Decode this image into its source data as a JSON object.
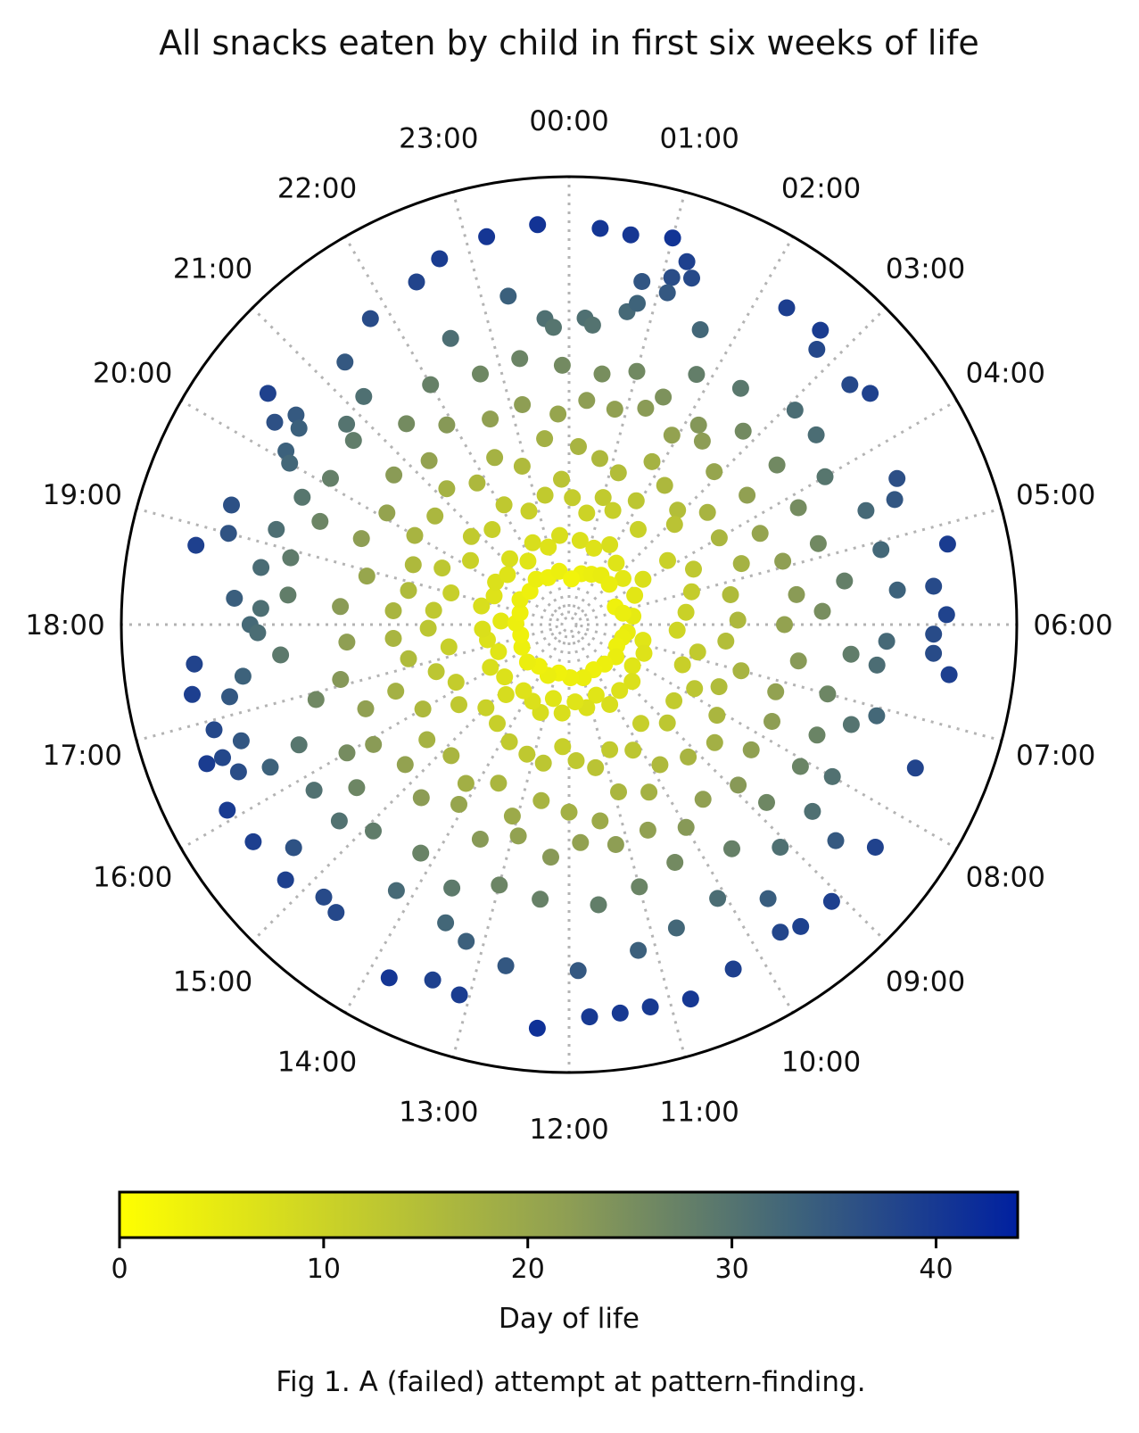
{
  "figure": {
    "caption": "Fig 1. A (failed) attempt at pattern-finding."
  },
  "chart_data": {
    "type": "scatter",
    "projection": "polar",
    "title": "All snacks eaten by child in first six weeks of life",
    "angular_axis": {
      "direction": "clockwise",
      "zero_at": "top",
      "tick_labels": [
        "00:00",
        "01:00",
        "02:00",
        "03:00",
        "04:00",
        "05:00",
        "06:00",
        "07:00",
        "08:00",
        "09:00",
        "10:00",
        "11:00",
        "12:00",
        "13:00",
        "14:00",
        "15:00",
        "16:00",
        "17:00",
        "18:00",
        "19:00",
        "20:00",
        "21:00",
        "22:00",
        "23:00"
      ]
    },
    "radial_axis": {
      "quantity": "day of life",
      "range": [
        0,
        44
      ],
      "tick_labels_shown": false
    },
    "grid": true,
    "colorbar": {
      "label": "Day of life",
      "range": [
        0,
        44
      ],
      "ticks": [
        0,
        10,
        20,
        30,
        40
      ],
      "tick_labels": [
        "0",
        "10",
        "20",
        "30",
        "40"
      ],
      "colormap_stops": [
        "#ffff00",
        "#8e9e54",
        "#3f647a",
        "#0020a0"
      ],
      "placement": "bottom"
    },
    "points_note": "each point: [hour of day (0-24), day of life]; also color-coded by day",
    "points": [
      [
        0.3,
        40.5
      ],
      [
        0.6,
        40.2
      ],
      [
        1.0,
        40.8
      ],
      [
        1.2,
        38.8
      ],
      [
        1.3,
        37.3
      ],
      [
        1.1,
        36.7
      ],
      [
        0.8,
        35.5
      ],
      [
        1.1,
        35.0
      ],
      [
        23.7,
        40.9
      ],
      [
        23.2,
        40.4
      ],
      [
        22.7,
        39.5
      ],
      [
        22.4,
        38.1
      ],
      [
        21.8,
        37.0
      ],
      [
        21.3,
        34.9
      ],
      [
        20.5,
        38.6
      ],
      [
        20.3,
        36.2
      ],
      [
        20.5,
        34.8
      ],
      [
        20.4,
        33.7
      ],
      [
        20.1,
        33.5
      ],
      [
        19.3,
        36.3
      ],
      [
        19.0,
        35.7
      ],
      [
        18.8,
        38.8
      ],
      [
        18.3,
        33.9
      ],
      [
        18.0,
        32.1
      ],
      [
        17.9,
        31.3
      ],
      [
        17.6,
        38.3
      ],
      [
        17.3,
        39.0
      ],
      [
        17.2,
        35.1
      ],
      [
        16.6,
        39.5
      ],
      [
        16.6,
        37.7
      ],
      [
        16.9,
        37.6
      ],
      [
        16.7,
        35.2
      ],
      [
        16.4,
        36.7
      ],
      [
        16.1,
        39.6
      ],
      [
        16.3,
        33.4
      ],
      [
        15.7,
        39.0
      ],
      [
        15.4,
        35.9
      ],
      [
        15.2,
        38.8
      ],
      [
        14.8,
        37.2
      ],
      [
        14.6,
        37.6
      ],
      [
        13.8,
        40.4
      ],
      [
        13.4,
        38.7
      ],
      [
        13.1,
        39.3
      ],
      [
        12.3,
        41.3
      ],
      [
        11.8,
        40.0
      ],
      [
        11.5,
        39.9
      ],
      [
        11.2,
        39.8
      ],
      [
        10.8,
        40.1
      ],
      [
        10.3,
        38.8
      ],
      [
        9.7,
        37.9
      ],
      [
        9.5,
        38.7
      ],
      [
        9.1,
        38.8
      ],
      [
        8.4,
        38.5
      ],
      [
        8.6,
        34.7
      ],
      [
        7.5,
        38.1
      ],
      [
        7.1,
        32.3
      ],
      [
        6.5,
        39.0
      ],
      [
        6.3,
        37.1
      ],
      [
        6.1,
        37.0
      ],
      [
        5.9,
        38.4
      ],
      [
        5.6,
        37.2
      ],
      [
        5.2,
        39.4
      ],
      [
        4.6,
        35.3
      ],
      [
        4.4,
        36.4
      ],
      [
        3.5,
        38.6
      ],
      [
        3.3,
        37.5
      ],
      [
        2.7,
        39.4
      ],
      [
        2.8,
        37.6
      ],
      [
        2.3,
        39.1
      ],
      [
        0.2,
        30.8
      ],
      [
        0.3,
        30.1
      ],
      [
        0.7,
        32.0
      ],
      [
        0.8,
        33.1
      ],
      [
        1.6,
        32.5
      ],
      [
        1.8,
        28.0
      ],
      [
        2.4,
        29.2
      ],
      [
        3.1,
        31.3
      ],
      [
        3.5,
        31.3
      ],
      [
        4.0,
        29.6
      ],
      [
        4.6,
        32.0
      ],
      [
        5.1,
        32.3
      ],
      [
        5.6,
        33.3
      ],
      [
        6.2,
        32.0
      ],
      [
        6.5,
        31.2
      ],
      [
        7.3,
        30.0
      ],
      [
        8.0,
        30.5
      ],
      [
        8.5,
        30.8
      ],
      [
        9.1,
        30.8
      ],
      [
        9.6,
        34.2
      ],
      [
        10.1,
        31.3
      ],
      [
        10.7,
        32.4
      ],
      [
        11.2,
        33.6
      ],
      [
        11.9,
        35.0
      ],
      [
        12.7,
        35.1
      ],
      [
        13.2,
        33.6
      ],
      [
        13.5,
        32.5
      ],
      [
        14.2,
        31.9
      ],
      [
        15.3,
        30.3
      ],
      [
        15.8,
        30.5
      ],
      [
        16.4,
        29.6
      ],
      [
        17.4,
        33.3
      ],
      [
        18.2,
        31.0
      ],
      [
        18.7,
        31.5
      ],
      [
        19.2,
        30.9
      ],
      [
        19.7,
        29.6
      ],
      [
        20.0,
        32.5
      ],
      [
        20.8,
        30.0
      ],
      [
        21.2,
        30.8
      ],
      [
        22.5,
        31.1
      ],
      [
        23.3,
        33.7
      ],
      [
        23.7,
        30.8
      ],
      [
        23.8,
        29.8
      ],
      [
        0.5,
        25.0
      ],
      [
        1.0,
        26.0
      ],
      [
        1.5,
        24.3
      ],
      [
        2.2,
        23.4
      ],
      [
        2.8,
        25.8
      ],
      [
        3.5,
        26.0
      ],
      [
        4.2,
        25.5
      ],
      [
        4.8,
        26.0
      ],
      [
        5.4,
        27.8
      ],
      [
        5.8,
        25.1
      ],
      [
        6.4,
        28.3
      ],
      [
        7.0,
        26.6
      ],
      [
        7.6,
        27.0
      ],
      [
        8.1,
        27.0
      ],
      [
        8.8,
        26.4
      ],
      [
        9.6,
        27.6
      ],
      [
        10.4,
        25.8
      ],
      [
        11.0,
        27.0
      ],
      [
        11.6,
        28.1
      ],
      [
        12.4,
        27.5
      ],
      [
        13.0,
        26.8
      ],
      [
        13.6,
        28.8
      ],
      [
        14.2,
        27.1
      ],
      [
        14.9,
        28.4
      ],
      [
        15.5,
        26.6
      ],
      [
        16.0,
        25.4
      ],
      [
        16.9,
        26.2
      ],
      [
        17.6,
        29.0
      ],
      [
        18.4,
        28.2
      ],
      [
        18.9,
        28.6
      ],
      [
        19.5,
        26.8
      ],
      [
        20.1,
        27.9
      ],
      [
        20.7,
        28.3
      ],
      [
        21.4,
        25.6
      ],
      [
        22.0,
        27.6
      ],
      [
        22.7,
        26.4
      ],
      [
        23.3,
        26.9
      ],
      [
        23.9,
        25.7
      ],
      [
        0.3,
        22.0
      ],
      [
        0.8,
        21.5
      ],
      [
        1.3,
        22.5
      ],
      [
        1.9,
        21.0
      ],
      [
        2.4,
        22.2
      ],
      [
        2.9,
        20.5
      ],
      [
        3.6,
        21.5
      ],
      [
        4.3,
        20.6
      ],
      [
        4.9,
        21.8
      ],
      [
        5.5,
        22.5
      ],
      [
        6.0,
        21.0
      ],
      [
        6.6,
        22.8
      ],
      [
        7.2,
        21.2
      ],
      [
        7.7,
        22.0
      ],
      [
        8.3,
        21.6
      ],
      [
        8.9,
        22.9
      ],
      [
        9.5,
        21.5
      ],
      [
        10.0,
        23.0
      ],
      [
        10.6,
        21.5
      ],
      [
        11.2,
        22.0
      ],
      [
        11.8,
        21.3
      ],
      [
        12.3,
        22.9
      ],
      [
        12.9,
        21.2
      ],
      [
        13.5,
        22.8
      ],
      [
        14.1,
        20.5
      ],
      [
        14.7,
        22.3
      ],
      [
        15.3,
        21.0
      ],
      [
        15.9,
        22.5
      ],
      [
        16.5,
        21.5
      ],
      [
        17.1,
        23.1
      ],
      [
        17.7,
        21.8
      ],
      [
        18.3,
        22.5
      ],
      [
        18.9,
        20.2
      ],
      [
        19.5,
        22.0
      ],
      [
        20.1,
        20.8
      ],
      [
        20.7,
        22.6
      ],
      [
        21.3,
        21.0
      ],
      [
        21.9,
        23.0
      ],
      [
        22.6,
        21.5
      ],
      [
        23.2,
        22.0
      ],
      [
        23.8,
        20.5
      ],
      [
        0.2,
        17.0
      ],
      [
        0.7,
        16.0
      ],
      [
        1.2,
        15.0
      ],
      [
        1.8,
        17.5
      ],
      [
        2.3,
        16.0
      ],
      [
        2.9,
        14.8
      ],
      [
        3.4,
        17.0
      ],
      [
        4.0,
        16.5
      ],
      [
        4.7,
        17.5
      ],
      [
        5.3,
        15.5
      ],
      [
        5.9,
        16.0
      ],
      [
        6.4,
        14.8
      ],
      [
        7.0,
        17.0
      ],
      [
        7.5,
        15.3
      ],
      [
        8.1,
        16.5
      ],
      [
        8.6,
        18.0
      ],
      [
        9.2,
        17.0
      ],
      [
        9.8,
        15.8
      ],
      [
        10.3,
        17.8
      ],
      [
        10.9,
        16.6
      ],
      [
        11.4,
        19.2
      ],
      [
        12.0,
        18.0
      ],
      [
        12.6,
        17.0
      ],
      [
        13.1,
        19.3
      ],
      [
        13.6,
        16.5
      ],
      [
        14.2,
        18.2
      ],
      [
        14.8,
        16.8
      ],
      [
        15.4,
        17.5
      ],
      [
        16.0,
        16.0
      ],
      [
        16.6,
        17.8
      ],
      [
        17.2,
        15.5
      ],
      [
        17.7,
        16.8
      ],
      [
        18.3,
        16.8
      ],
      [
        18.8,
        15.5
      ],
      [
        19.4,
        15.8
      ],
      [
        20.0,
        17.0
      ],
      [
        20.6,
        16.4
      ],
      [
        21.2,
        17.5
      ],
      [
        21.8,
        16.0
      ],
      [
        22.4,
        17.5
      ],
      [
        22.9,
        15.6
      ],
      [
        23.5,
        18.0
      ],
      [
        0.1,
        11.5
      ],
      [
        0.6,
        10.0
      ],
      [
        1.0,
        12.0
      ],
      [
        1.4,
        11.0
      ],
      [
        1.9,
        13.0
      ],
      [
        2.4,
        10.5
      ],
      [
        3.1,
        13.5
      ],
      [
        3.8,
        10.5
      ],
      [
        4.4,
        12.5
      ],
      [
        5.0,
        11.5
      ],
      [
        5.6,
        10.5
      ],
      [
        6.2,
        9.5
      ],
      [
        6.8,
        12.0
      ],
      [
        7.3,
        10.8
      ],
      [
        7.8,
        13.0
      ],
      [
        8.4,
        11.8
      ],
      [
        9.0,
        12.8
      ],
      [
        9.6,
        11.0
      ],
      [
        10.2,
        13.0
      ],
      [
        10.8,
        12.0
      ],
      [
        11.3,
        13.5
      ],
      [
        11.8,
        12.5
      ],
      [
        12.2,
        11.0
      ],
      [
        12.7,
        13.0
      ],
      [
        13.2,
        12.5
      ],
      [
        13.8,
        12.0
      ],
      [
        14.4,
        11.0
      ],
      [
        15.0,
        10.5
      ],
      [
        15.6,
        12.5
      ],
      [
        16.2,
        11.5
      ],
      [
        16.7,
        13.0
      ],
      [
        17.3,
        11.0
      ],
      [
        17.9,
        13.0
      ],
      [
        18.4,
        12.5
      ],
      [
        19.0,
        11.0
      ],
      [
        19.6,
        12.8
      ],
      [
        20.2,
        10.5
      ],
      [
        20.8,
        12.0
      ],
      [
        21.4,
        11.0
      ],
      [
        22.1,
        12.5
      ],
      [
        22.7,
        10.8
      ],
      [
        23.3,
        12.0
      ],
      [
        23.8,
        13.5
      ],
      [
        0.5,
        7.0
      ],
      [
        1.2,
        6.5
      ],
      [
        1.8,
        7.5
      ],
      [
        2.5,
        6.2
      ],
      [
        3.3,
        5.5
      ],
      [
        3.9,
        7.2
      ],
      [
        4.4,
        5.6
      ],
      [
        5.5,
        4.8
      ],
      [
        6.5,
        4.2
      ],
      [
        6.8,
        6.0
      ],
      [
        7.4,
        6.5
      ],
      [
        8.2,
        6.0
      ],
      [
        8.8,
        7.0
      ],
      [
        9.5,
        6.8
      ],
      [
        10.2,
        7.5
      ],
      [
        10.6,
        6.0
      ],
      [
        11.2,
        7.0
      ],
      [
        11.7,
        6.2
      ],
      [
        12.3,
        7.4
      ],
      [
        12.8,
        6.0
      ],
      [
        13.2,
        7.8
      ],
      [
        13.7,
        7.0
      ],
      [
        14.3,
        6.5
      ],
      [
        14.8,
        8.0
      ],
      [
        15.4,
        6.8
      ],
      [
        16.1,
        7.5
      ],
      [
        16.6,
        6.0
      ],
      [
        17.3,
        6.8
      ],
      [
        17.8,
        7.2
      ],
      [
        18.2,
        5.2
      ],
      [
        18.8,
        7.5
      ],
      [
        19.4,
        6.5
      ],
      [
        20.0,
        7.0
      ],
      [
        20.6,
        6.4
      ],
      [
        21.2,
        7.4
      ],
      [
        21.8,
        6.0
      ],
      [
        22.4,
        7.5
      ],
      [
        23.0,
        6.5
      ],
      [
        23.6,
        7.5
      ],
      [
        0.9,
        3.5
      ],
      [
        1.6,
        3.8
      ],
      [
        2.2,
        4.2
      ],
      [
        3.0,
        4.0
      ],
      [
        4.6,
        3.2
      ],
      [
        5.2,
        3.8
      ],
      [
        6.9,
        3.8
      ],
      [
        7.6,
        3.5
      ],
      [
        8.3,
        4.0
      ],
      [
        9.2,
        3.6
      ],
      [
        10.1,
        3.4
      ],
      [
        11.0,
        3.8
      ],
      [
        11.9,
        3.6
      ],
      [
        12.8,
        3.2
      ],
      [
        13.5,
        3.8
      ],
      [
        14.4,
        3.4
      ],
      [
        15.2,
        3.9
      ],
      [
        16.3,
        3.5
      ],
      [
        17.2,
        3.2
      ],
      [
        18.1,
        3.6
      ],
      [
        18.9,
        3.3
      ],
      [
        19.8,
        3.8
      ],
      [
        20.7,
        3.4
      ],
      [
        21.6,
        3.9
      ],
      [
        22.4,
        3.4
      ],
      [
        23.3,
        3.7
      ],
      [
        0.2,
        2.8
      ]
    ]
  }
}
